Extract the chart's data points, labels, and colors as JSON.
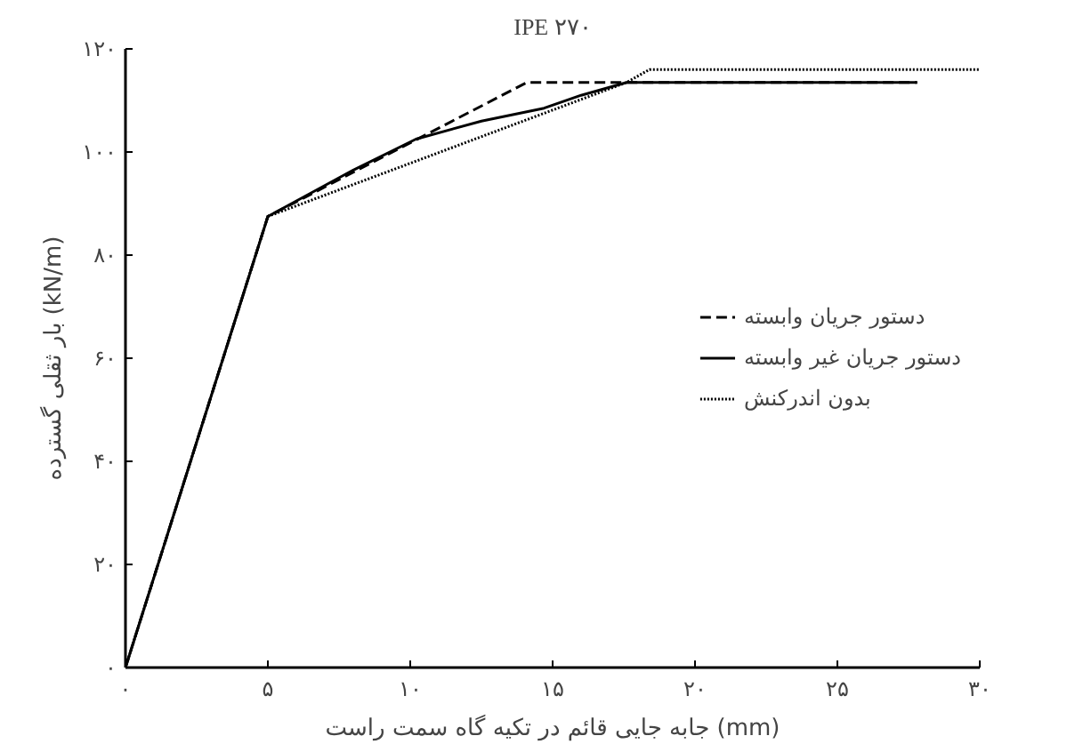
{
  "chart_data": {
    "type": "line",
    "title": "IPE ۲۷۰",
    "xlabel": "جابه جایی قائم در تکیه گاه سمت راست (mm)",
    "ylabel": "بار ثقلی گسترده (kN/m)",
    "xlim": [
      0,
      30
    ],
    "ylim": [
      0,
      120
    ],
    "xticks": [
      {
        "value": 0,
        "label": "۰"
      },
      {
        "value": 5,
        "label": "۵"
      },
      {
        "value": 10,
        "label": "۱۰"
      },
      {
        "value": 15,
        "label": "۱۵"
      },
      {
        "value": 20,
        "label": "۲۰"
      },
      {
        "value": 25,
        "label": "۲۵"
      },
      {
        "value": 30,
        "label": "۳۰"
      }
    ],
    "yticks": [
      {
        "value": 0,
        "label": "۰"
      },
      {
        "value": 20,
        "label": "۲۰"
      },
      {
        "value": 40,
        "label": "۴۰"
      },
      {
        "value": 60,
        "label": "۶۰"
      },
      {
        "value": 80,
        "label": "۸۰"
      },
      {
        "value": 100,
        "label": "۱۰۰"
      },
      {
        "value": 120,
        "label": "۱۲۰"
      }
    ],
    "grid": false,
    "legend": "right",
    "marker": "none",
    "series": [
      {
        "name": "دستور جریان وابسته",
        "color": "#000000",
        "line_style": "dashed",
        "x": [
          0,
          5,
          14.1,
          27.8
        ],
        "values": [
          0,
          87.5,
          113.5,
          113.5
        ]
      },
      {
        "name": "دستور جریان غیر وابسته",
        "color": "#000000",
        "line_style": "solid",
        "x": [
          0,
          5,
          8,
          10.2,
          12.5,
          14.7,
          16,
          17.6,
          27.8
        ],
        "values": [
          0,
          87.5,
          96.5,
          102.5,
          106,
          108.5,
          111,
          113.5,
          113.5
        ]
      },
      {
        "name": "بدون اندرکنش",
        "color": "#000000",
        "line_style": "dotted",
        "x": [
          0,
          5,
          17.6,
          18.4,
          30
        ],
        "values": [
          0,
          87.5,
          113.5,
          116,
          116
        ]
      }
    ]
  }
}
